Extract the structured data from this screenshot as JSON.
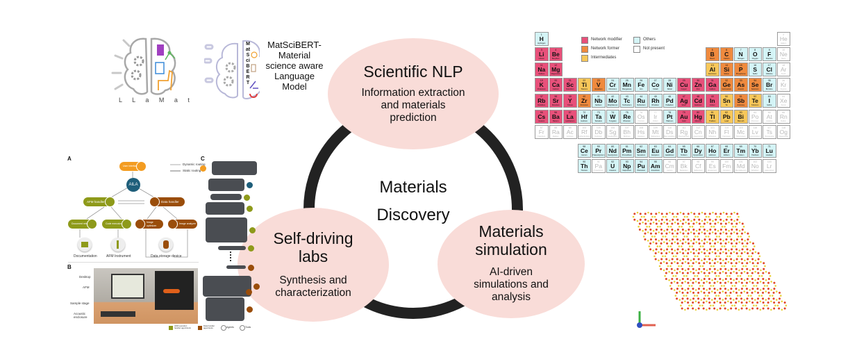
{
  "center": {
    "title_line1": "Materials",
    "title_line2": "Discovery"
  },
  "nodes": {
    "nlp": {
      "title": "Scientific NLP",
      "sub1": "Information extraction",
      "sub2": "and materials",
      "sub3": "prediction"
    },
    "labs": {
      "title1": "Self-driving",
      "title2": "labs",
      "sub1": "Synthesis and",
      "sub2": "characterization"
    },
    "sim": {
      "title1": "Materials",
      "title2": "simulation",
      "sub1": "AI-driven",
      "sub2": "simulations and",
      "sub3": "analysis"
    }
  },
  "colors": {
    "node_fill": "#f9dcd8",
    "ring": "#222222",
    "modifier": "#e8507a",
    "former": "#ef8a3e",
    "intermediate": "#f7c75a",
    "others": "#d4f4f6",
    "not_present": "#ffffff",
    "afm_olive": "#8e9a1a",
    "data_brown": "#9a4d0a",
    "ui_orange": "#f39c21",
    "aila_teal": "#1e5e7a"
  },
  "llamat": {
    "logo_text": "L L a M a t",
    "icon": "brain-icon"
  },
  "matscibert": {
    "vertical_text": "MatSciBERT",
    "caption": [
      "MatSciBERT-",
      "Material",
      "science aware",
      "Language",
      "Model"
    ],
    "icon": "brain-icon"
  },
  "aila_figure": {
    "panel_a": "A",
    "panel_b": "B",
    "panel_c": "C",
    "user_interface": "User interface",
    "legend_dynamic": "Dynamic routing",
    "legend_static": "Static routing",
    "aila": "AILA",
    "afm_handler": "AFM handler",
    "data_handler": "Data handler",
    "document_retriever": "Document retriever",
    "code_executor": "Code executor",
    "image_optimizer": "Image optimizer",
    "image_analyzer": "Image analyzer",
    "documentation": "Documentation",
    "afm_instrument": "AFM Instrument",
    "data_storage": "Data storage device",
    "photo_labels": [
      "Desktop",
      "AFM",
      "Sample stage",
      "Acoustic enclosure"
    ],
    "legend_afm": "AFM operation handler agent/tools",
    "legend_data": "Data handler agent/tools",
    "legend_agents": "Agents",
    "legend_tools": "Tools"
  },
  "periodic_table": {
    "legend": [
      {
        "key": "M",
        "label": "Network modifier"
      },
      {
        "key": "F",
        "label": "Network former"
      },
      {
        "key": "I",
        "label": "Intermediates"
      },
      {
        "key": "O",
        "label": "Others"
      },
      {
        "key": "N",
        "label": "Not present"
      }
    ],
    "elements": [
      [
        1,
        "H",
        "Hydrogen",
        "O"
      ],
      [
        2,
        "He",
        "Helium",
        "N"
      ],
      [
        3,
        "Li",
        "Lithium",
        "M"
      ],
      [
        4,
        "Be",
        "Beryllium",
        "M"
      ],
      [
        5,
        "B",
        "Boron",
        "F"
      ],
      [
        6,
        "C",
        "Carbon",
        "F"
      ],
      [
        7,
        "N",
        "Nitrogen",
        "O"
      ],
      [
        8,
        "O",
        "Oxygen",
        "O"
      ],
      [
        9,
        "F",
        "Fluorine",
        "O"
      ],
      [
        10,
        "Ne",
        "Neon",
        "N"
      ],
      [
        11,
        "Na",
        "Sodium",
        "M"
      ],
      [
        12,
        "Mg",
        "Magnesium",
        "M"
      ],
      [
        13,
        "Al",
        "Aluminium",
        "I"
      ],
      [
        14,
        "Si",
        "Silicon",
        "F"
      ],
      [
        15,
        "P",
        "Phosphorus",
        "F"
      ],
      [
        16,
        "S",
        "Sulfur",
        "O"
      ],
      [
        17,
        "Cl",
        "Chlorine",
        "O"
      ],
      [
        18,
        "Ar",
        "Argon",
        "N"
      ],
      [
        19,
        "K",
        "Potassium",
        "M"
      ],
      [
        20,
        "Ca",
        "Calcium",
        "M"
      ],
      [
        21,
        "Sc",
        "Scandium",
        "M"
      ],
      [
        22,
        "Ti",
        "Titanium",
        "I"
      ],
      [
        23,
        "V",
        "Vanadium",
        "F"
      ],
      [
        24,
        "Cr",
        "Chromium",
        "O"
      ],
      [
        25,
        "Mn",
        "Manganese",
        "O"
      ],
      [
        26,
        "Fe",
        "Iron",
        "O"
      ],
      [
        27,
        "Co",
        "Cobalt",
        "O"
      ],
      [
        28,
        "Ni",
        "Nickel",
        "O"
      ],
      [
        29,
        "Cu",
        "Copper",
        "M"
      ],
      [
        30,
        "Zn",
        "Zinc",
        "M"
      ],
      [
        31,
        "Ga",
        "Gallium",
        "M"
      ],
      [
        32,
        "Ge",
        "Germanium",
        "F"
      ],
      [
        33,
        "As",
        "Arsenic",
        "F"
      ],
      [
        34,
        "Se",
        "Selenium",
        "F"
      ],
      [
        35,
        "Br",
        "Bromine",
        "O"
      ],
      [
        36,
        "Kr",
        "Krypton",
        "N"
      ],
      [
        37,
        "Rb",
        "Rubidium",
        "M"
      ],
      [
        38,
        "Sr",
        "Strontium",
        "M"
      ],
      [
        39,
        "Y",
        "Yttrium",
        "M"
      ],
      [
        40,
        "Zr",
        "Zirconium",
        "F"
      ],
      [
        41,
        "Nb",
        "Niobium",
        "O"
      ],
      [
        42,
        "Mo",
        "Molybdenum",
        "O"
      ],
      [
        43,
        "Tc",
        "Technetium",
        "O"
      ],
      [
        44,
        "Ru",
        "Ruthenium",
        "O"
      ],
      [
        45,
        "Rh",
        "Rhodium",
        "O"
      ],
      [
        46,
        "Pd",
        "Palladium",
        "O"
      ],
      [
        47,
        "Ag",
        "Silver",
        "M"
      ],
      [
        48,
        "Cd",
        "Cadmium",
        "M"
      ],
      [
        49,
        "In",
        "Indium",
        "M"
      ],
      [
        50,
        "Sn",
        "Tin",
        "I"
      ],
      [
        51,
        "Sb",
        "Antimony",
        "F"
      ],
      [
        52,
        "Te",
        "Tellurium",
        "I"
      ],
      [
        53,
        "I",
        "Iodine",
        "O"
      ],
      [
        54,
        "Xe",
        "Xenon",
        "N"
      ],
      [
        55,
        "Cs",
        "Cesium",
        "M"
      ],
      [
        56,
        "Ba",
        "Barium",
        "M"
      ],
      [
        57,
        "La",
        "Lanthanum",
        "M"
      ],
      [
        58,
        "Ce",
        "Cerium",
        "O"
      ],
      [
        59,
        "Pr",
        "Praseodymium",
        "O"
      ],
      [
        60,
        "Nd",
        "Neodymium",
        "O"
      ],
      [
        61,
        "Pm",
        "Promethium",
        "O"
      ],
      [
        62,
        "Sm",
        "Samarium",
        "O"
      ],
      [
        63,
        "Eu",
        "Europium",
        "O"
      ],
      [
        64,
        "Gd",
        "Gadolinium",
        "O"
      ],
      [
        65,
        "Tb",
        "Terbium",
        "O"
      ],
      [
        66,
        "Dy",
        "Dysprosium",
        "O"
      ],
      [
        67,
        "Ho",
        "Holmium",
        "O"
      ],
      [
        68,
        "Er",
        "Erbium",
        "O"
      ],
      [
        69,
        "Tm",
        "Thulium",
        "O"
      ],
      [
        70,
        "Yb",
        "Ytterbium",
        "O"
      ],
      [
        71,
        "Lu",
        "Lutetium",
        "O"
      ],
      [
        72,
        "Hf",
        "Hafnium",
        "O"
      ],
      [
        73,
        "Ta",
        "Tantalum",
        "O"
      ],
      [
        74,
        "W",
        "Tungsten",
        "O"
      ],
      [
        75,
        "Re",
        "Rhenium",
        "O"
      ],
      [
        76,
        "Os",
        "Osmium",
        "N"
      ],
      [
        77,
        "Ir",
        "Iridium",
        "N"
      ],
      [
        78,
        "Pt",
        "Platinum",
        "O"
      ],
      [
        79,
        "Au",
        "Gold",
        "M"
      ],
      [
        80,
        "Hg",
        "Mercury",
        "M"
      ],
      [
        81,
        "Tl",
        "Thallium",
        "I"
      ],
      [
        82,
        "Pb",
        "Lead",
        "I"
      ],
      [
        83,
        "Bi",
        "Bismuth",
        "I"
      ],
      [
        84,
        "Po",
        "Polonium",
        "N"
      ],
      [
        85,
        "At",
        "Astatine",
        "N"
      ],
      [
        86,
        "Rn",
        "Radon",
        "N"
      ],
      [
        87,
        "Fr",
        "Francium",
        "N"
      ],
      [
        88,
        "Ra",
        "Radium",
        "N"
      ],
      [
        89,
        "Ac",
        "Actinium",
        "N"
      ],
      [
        90,
        "Th",
        "Thorium",
        "O"
      ],
      [
        91,
        "Pa",
        "Protactinium",
        "N"
      ],
      [
        92,
        "U",
        "Uranium",
        "O"
      ],
      [
        93,
        "Np",
        "Neptunium",
        "O"
      ],
      [
        94,
        "Pu",
        "Plutonium",
        "O"
      ],
      [
        95,
        "Am",
        "Americium",
        "O"
      ],
      [
        96,
        "Cm",
        "Curium",
        "N"
      ],
      [
        97,
        "Bk",
        "Berkelium",
        "N"
      ],
      [
        98,
        "Cf",
        "Californium",
        "N"
      ],
      [
        99,
        "Es",
        "Einsteinium",
        "N"
      ],
      [
        100,
        "Fm",
        "Fermium",
        "N"
      ],
      [
        101,
        "Md",
        "Mendelevium",
        "N"
      ],
      [
        102,
        "No",
        "Nobelium",
        "N"
      ],
      [
        103,
        "Lr",
        "Lawrencium",
        "N"
      ],
      [
        104,
        "Rf",
        "Rutherfordium",
        "N"
      ],
      [
        105,
        "Db",
        "Dubnium",
        "N"
      ],
      [
        106,
        "Sg",
        "Seaborgium",
        "N"
      ],
      [
        107,
        "Bh",
        "Bohrium",
        "N"
      ],
      [
        108,
        "Hs",
        "Hassium",
        "N"
      ],
      [
        109,
        "Mt",
        "Meitnerium",
        "N"
      ],
      [
        110,
        "Ds",
        "Darmstadtium",
        "N"
      ],
      [
        111,
        "Rg",
        "Roentgenium",
        "N"
      ],
      [
        112,
        "Cn",
        "Copernicium",
        "N"
      ],
      [
        113,
        "Nh",
        "Nihonium",
        "N"
      ],
      [
        114,
        "Fl",
        "Flerovium",
        "N"
      ],
      [
        115,
        "Mc",
        "Moscovium",
        "N"
      ],
      [
        116,
        "Lv",
        "Livermorium",
        "N"
      ],
      [
        117,
        "Ts",
        "Tennessine",
        "N"
      ],
      [
        118,
        "Og",
        "Oganesson",
        "N"
      ]
    ]
  },
  "structure": {
    "icon": "crystal-structure-image",
    "axes_icon": "xyz-axes-icon"
  }
}
